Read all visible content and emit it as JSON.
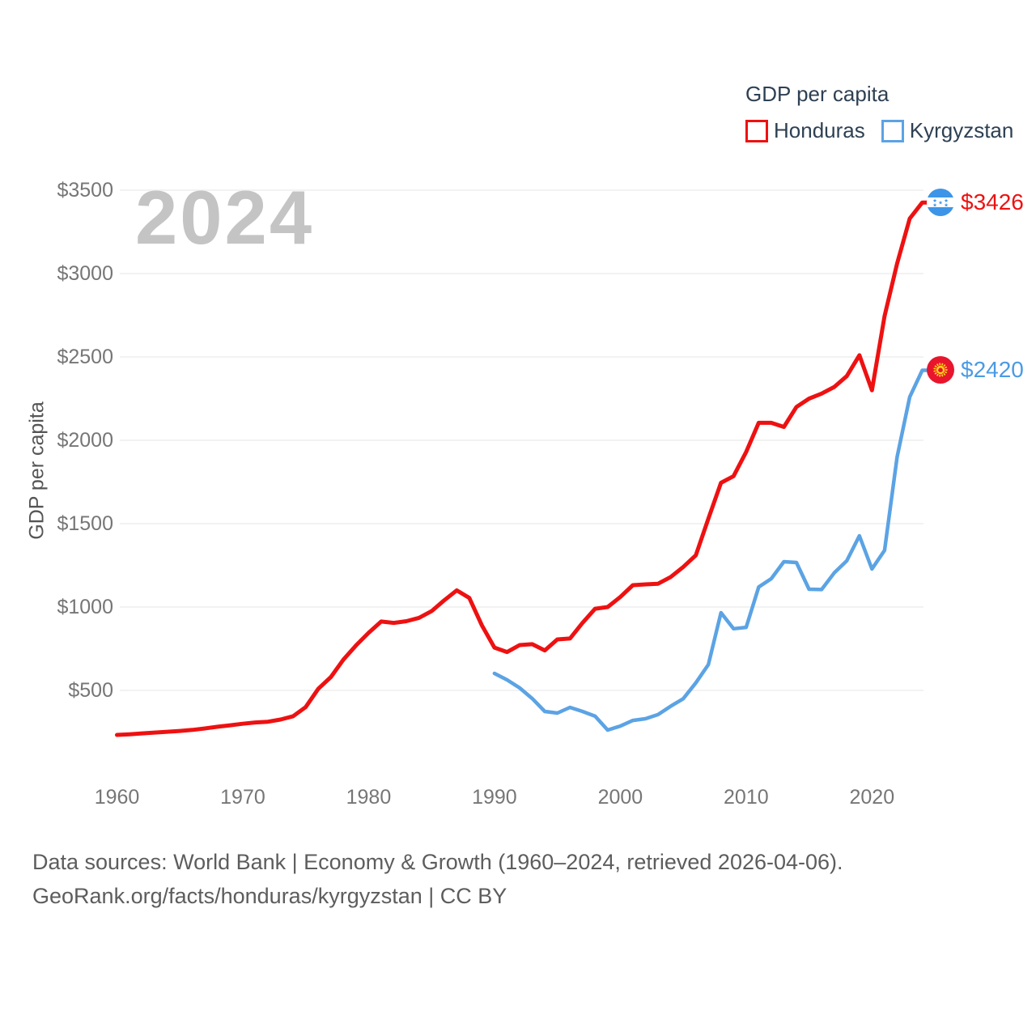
{
  "legend": {
    "title": "GDP per capita",
    "items": [
      {
        "label": "Honduras",
        "color": "#ee1111"
      },
      {
        "label": "Kyrgyzstan",
        "color": "#5ba3e4"
      }
    ]
  },
  "watermark": {
    "text": "2024"
  },
  "y_axis": {
    "title": "GDP per capita",
    "tick_prefix": "$",
    "ticks": [
      500,
      1000,
      1500,
      2000,
      2500,
      3000,
      3500
    ]
  },
  "x_axis": {
    "ticks": [
      1960,
      1970,
      1980,
      1990,
      2000,
      2010,
      2020
    ]
  },
  "end_labels": [
    {
      "series": "Honduras",
      "text": "$3426",
      "color": "#ee1111",
      "flag_icon": "honduras-flag-icon"
    },
    {
      "series": "Kyrgyzstan",
      "text": "$2420",
      "color": "#4a9be4",
      "flag_icon": "kyrgyzstan-flag-icon"
    }
  ],
  "footer": {
    "line1": "Data sources: World Bank | Economy & Growth (1960–2024, retrieved 2026-04-06).",
    "line2": "GeoRank.org/facts/honduras/kyrgyzstan | CC BY"
  },
  "chart_data": {
    "type": "line",
    "title": "GDP per capita",
    "xlabel": "",
    "ylabel": "GDP per capita",
    "xlim": [
      1958,
      2026
    ],
    "ylim": [
      0,
      3600
    ],
    "grid": "horizontal",
    "legend_position": "top-right",
    "xticks": [
      1960,
      1970,
      1980,
      1990,
      2000,
      2010,
      2020
    ],
    "yticks": [
      500,
      1000,
      1500,
      2000,
      2500,
      3000,
      3500
    ],
    "series": [
      {
        "name": "Honduras",
        "color": "#ee1111",
        "stroke_width": 5,
        "start_year": 1960,
        "end_year": 2024,
        "end_label": "$3426",
        "values": [
          233,
          237,
          242,
          247,
          252,
          257,
          263,
          272,
          282,
          291,
          300,
          308,
          312,
          325,
          345,
          400,
          510,
          580,
          685,
          770,
          845,
          913,
          905,
          915,
          935,
          975,
          1040,
          1100,
          1055,
          890,
          757,
          730,
          772,
          777,
          740,
          806,
          811,
          905,
          990,
          1000,
          1060,
          1131,
          1136,
          1140,
          1180,
          1240,
          1310,
          1530,
          1745,
          1785,
          1930,
          2105,
          2105,
          2080,
          2200,
          2250,
          2280,
          2320,
          2385,
          2510,
          2300,
          2745,
          3060,
          3330,
          3426
        ]
      },
      {
        "name": "Kyrgyzstan",
        "color": "#5ba3e4",
        "stroke_width": 4.5,
        "start_year": 1990,
        "end_year": 2024,
        "end_label": "$2420",
        "values": [
          602,
          563,
          515,
          451,
          374,
          364,
          398,
          374,
          345,
          262,
          286,
          320,
          330,
          355,
          405,
          450,
          545,
          655,
          966,
          870,
          878,
          1120,
          1170,
          1272,
          1267,
          1107,
          1105,
          1205,
          1277,
          1427,
          1228,
          1340,
          1900,
          2260,
          2420
        ]
      }
    ]
  }
}
